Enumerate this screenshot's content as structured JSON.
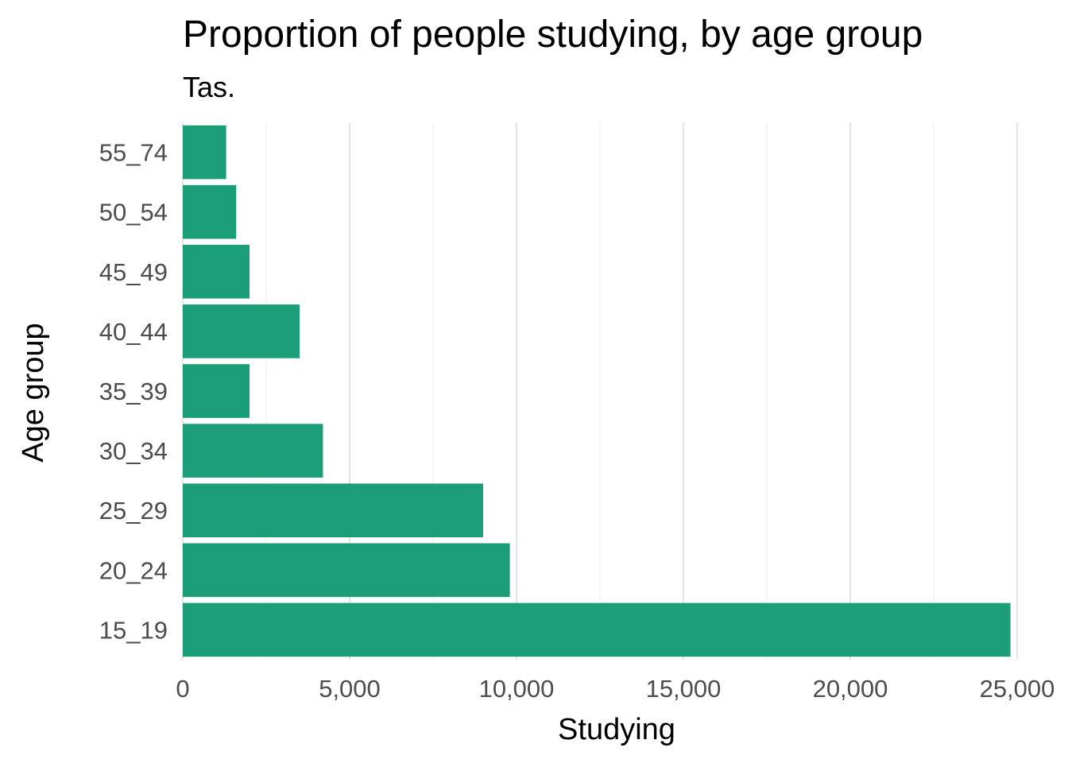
{
  "chart_data": {
    "type": "bar",
    "orientation": "horizontal",
    "title": "Proportion of people studying, by age group",
    "subtitle": "Tas.",
    "xlabel": "Studying",
    "ylabel": "Age group",
    "categories": [
      "15_19",
      "20_24",
      "25_29",
      "30_34",
      "35_39",
      "40_44",
      "45_49",
      "50_54",
      "55_74"
    ],
    "values": [
      24800,
      9800,
      9000,
      4200,
      2000,
      3500,
      2000,
      1600,
      1300
    ],
    "xlim": [
      0,
      25000
    ],
    "x_ticks": [
      0,
      5000,
      10000,
      15000,
      20000,
      25000
    ],
    "x_tick_labels": [
      "0",
      "5,000",
      "10,000",
      "15,000",
      "20,000",
      "25,000"
    ],
    "grid": true,
    "legend": "none",
    "bar_color": "#1b9e77"
  }
}
